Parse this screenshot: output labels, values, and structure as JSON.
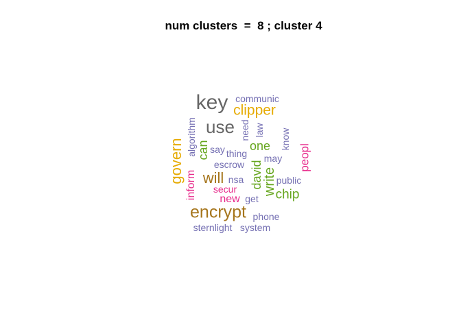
{
  "title": "num clusters  =  8 ; cluster 4",
  "palette": {
    "gray": "#666666",
    "gold": "#e6ab02",
    "brown": "#a6761d",
    "purple": "#7570b3",
    "green": "#66a61e",
    "magenta": "#e7298a"
  },
  "words": [
    {
      "text": "key",
      "color": "gray",
      "size": 30,
      "vertical": false
    },
    {
      "text": "communic",
      "color": "purple",
      "size": 14,
      "vertical": false
    },
    {
      "text": "clipper",
      "color": "gold",
      "size": 21,
      "vertical": false
    },
    {
      "text": "use",
      "color": "gray",
      "size": 26,
      "vertical": false
    },
    {
      "text": "algorithm",
      "color": "purple",
      "size": 14,
      "vertical": true
    },
    {
      "text": "need",
      "color": "purple",
      "size": 14,
      "vertical": true
    },
    {
      "text": "law",
      "color": "purple",
      "size": 14,
      "vertical": true
    },
    {
      "text": "know",
      "color": "purple",
      "size": 14,
      "vertical": true
    },
    {
      "text": "govern",
      "color": "gold",
      "size": 22,
      "vertical": true
    },
    {
      "text": "can",
      "color": "green",
      "size": 18,
      "vertical": true
    },
    {
      "text": "say",
      "color": "purple",
      "size": 14,
      "vertical": false
    },
    {
      "text": "thing",
      "color": "purple",
      "size": 14,
      "vertical": false
    },
    {
      "text": "one",
      "color": "green",
      "size": 18,
      "vertical": false
    },
    {
      "text": "may",
      "color": "purple",
      "size": 14,
      "vertical": false
    },
    {
      "text": "peopl",
      "color": "magenta",
      "size": 17,
      "vertical": true
    },
    {
      "text": "escrow",
      "color": "purple",
      "size": 14,
      "vertical": false
    },
    {
      "text": "david",
      "color": "green",
      "size": 18,
      "vertical": true
    },
    {
      "text": "write",
      "color": "green",
      "size": 20,
      "vertical": true
    },
    {
      "text": "inform",
      "color": "magenta",
      "size": 16,
      "vertical": true
    },
    {
      "text": "will",
      "color": "brown",
      "size": 22,
      "vertical": false
    },
    {
      "text": "nsa",
      "color": "purple",
      "size": 14,
      "vertical": false
    },
    {
      "text": "public",
      "color": "purple",
      "size": 14,
      "vertical": false
    },
    {
      "text": "secur",
      "color": "magenta",
      "size": 14,
      "vertical": false
    },
    {
      "text": "chip",
      "color": "green",
      "size": 19,
      "vertical": false
    },
    {
      "text": "new",
      "color": "magenta",
      "size": 16,
      "vertical": false
    },
    {
      "text": "get",
      "color": "purple",
      "size": 14,
      "vertical": false
    },
    {
      "text": "encrypt",
      "color": "brown",
      "size": 25,
      "vertical": false
    },
    {
      "text": "phone",
      "color": "purple",
      "size": 14,
      "vertical": false
    },
    {
      "text": "sternlight",
      "color": "purple",
      "size": 14,
      "vertical": false
    },
    {
      "text": "system",
      "color": "purple",
      "size": 14,
      "vertical": false
    }
  ]
}
